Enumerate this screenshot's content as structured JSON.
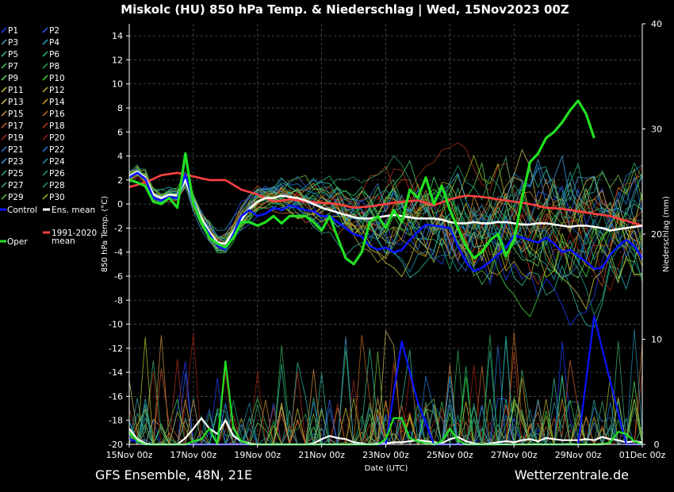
{
  "chart_data": {
    "type": "line",
    "title": "Miskolc  (HU)  850 hPa Temp. & Niederschlag | Wed, 15Nov2023 00Z",
    "ylabel_left": "850 hPa Temp. (°C)",
    "ylabel_right": "Niederschlag (mm)",
    "xlabel": "Date (UTC)",
    "x_ticks": [
      "15Nov 00z",
      "17Nov 00z",
      "19Nov 00z",
      "21Nov 00z",
      "23Nov 00z",
      "25Nov 00z",
      "27Nov 00z",
      "29Nov 00z",
      "01Dec 00z"
    ],
    "y_left_ticks": [
      "14",
      "12",
      "10",
      "8",
      "6",
      "4",
      "2",
      "0",
      "-2",
      "-4",
      "-6",
      "-8",
      "-10",
      "-12",
      "-14",
      "-16",
      "-18",
      "-20"
    ],
    "y_right_ticks": [
      "40",
      "30",
      "20",
      "10",
      "0"
    ],
    "ylim_left": [
      -20,
      15
    ],
    "ylim_right": [
      0,
      40
    ],
    "grid": true,
    "footer_left": "GFS Ensemble, 48N, 21E",
    "footer_right": "Wetterzentrale.de",
    "legend": {
      "placement": "left",
      "members": [
        "P1",
        "P2",
        "P3",
        "P4",
        "P5",
        "P6",
        "P7",
        "P8",
        "P9",
        "P10",
        "P11",
        "P12",
        "P13",
        "P14",
        "P15",
        "P16",
        "P17",
        "P18",
        "P19",
        "P20",
        "P21",
        "P22",
        "P23",
        "P24",
        "P25",
        "P26",
        "P27",
        "P28",
        "P29",
        "P30"
      ],
      "control": "Control",
      "ens_mean": "Ens. mean",
      "oper": "Oper",
      "clim_line1": "1991-2020",
      "clim_line2": "mean"
    },
    "member_colors": [
      "#1f3fff",
      "#3060ff",
      "#3aa0b0",
      "#20b0c0",
      "#30c0a0",
      "#20c070",
      "#40d060",
      "#30b050",
      "#60e060",
      "#40e040",
      "#d0d040",
      "#c0b030",
      "#d0c060",
      "#e0a020",
      "#d09040",
      "#c07020",
      "#d06030",
      "#c04020",
      "#b03020",
      "#a02010",
      "#3070d0",
      "#2080e0",
      "#40a0e0",
      "#2090b0",
      "#30b090",
      "#20a080",
      "#40b070",
      "#30a060",
      "#70c040",
      "#b0c020"
    ],
    "series": [
      {
        "name": "Control",
        "color": "#0a14ff",
        "axis": "temp",
        "x": [
          0,
          0.5,
          1,
          1.5,
          2,
          2.5,
          3,
          3.5,
          4,
          4.5,
          5,
          5.5,
          6,
          6.5,
          7,
          7.5,
          8,
          8.5,
          9,
          9.5,
          10,
          10.5,
          11,
          11.5,
          12,
          12.5,
          13,
          13.5,
          14,
          14.5,
          15,
          15.5,
          16,
          16.5,
          17,
          17.5,
          18,
          18.5,
          19,
          19.5,
          20,
          20.5,
          21,
          21.5,
          22,
          22.5,
          23,
          23.5,
          24,
          24.5,
          25,
          25.5,
          26,
          26.5,
          27,
          27.5,
          28,
          28.5,
          29,
          29.5,
          30,
          30.5,
          31,
          31.5,
          32
        ],
        "y": [
          2.2,
          2.6,
          2.1,
          0.5,
          0.3,
          0.6,
          0.5,
          2.5,
          0.2,
          -1.5,
          -2.5,
          -3.5,
          -3.8,
          -2.5,
          -1.0,
          -0.5,
          -1.0,
          -0.8,
          -0.3,
          -0.5,
          -0.1,
          -0.3,
          -0.5,
          -0.6,
          -1.0,
          -1.0,
          -1.5,
          -2.0,
          -2.5,
          -2.7,
          -3.5,
          -3.8,
          -3.6,
          -4.0,
          -3.8,
          -3.0,
          -2.3,
          -1.7,
          -1.8,
          -1.9,
          -2.0,
          -3.5,
          -4.8,
          -5.6,
          -5.3,
          -4.8,
          -4.2,
          -3.6,
          -2.6,
          -2.8,
          -3.0,
          -3.2,
          -2.8,
          -3.3,
          -4.0,
          -3.8,
          -4.3,
          -4.8,
          -5.4,
          -5.3,
          -4.2,
          -3.5,
          -3.0,
          -3.5,
          -4.5
        ]
      },
      {
        "name": "Ens. mean",
        "color": "#ffffff",
        "axis": "temp",
        "x": [
          0,
          0.5,
          1,
          1.5,
          2,
          2.5,
          3,
          3.5,
          4,
          4.5,
          5,
          5.5,
          6,
          6.5,
          7,
          7.5,
          8,
          8.5,
          9,
          9.5,
          10,
          10.5,
          11,
          11.5,
          12,
          12.5,
          13,
          13.5,
          14,
          14.5,
          15,
          15.5,
          16,
          16.5,
          17,
          17.5,
          18,
          18.5,
          19,
          19.5,
          20,
          20.5,
          21,
          21.5,
          22,
          22.5,
          23,
          23.5,
          24,
          24.5,
          25,
          25.5,
          26,
          26.5,
          27,
          27.5,
          28,
          28.5,
          29,
          29.5,
          30,
          30.5,
          31,
          31.5,
          32
        ],
        "y": [
          2.3,
          2.7,
          2.2,
          0.8,
          0.5,
          0.8,
          0.7,
          2.0,
          0.3,
          -1.2,
          -2.3,
          -3.2,
          -3.3,
          -2.3,
          -1.3,
          -0.4,
          0.2,
          0.5,
          0.5,
          0.7,
          0.6,
          0.5,
          0.3,
          0,
          -0.3,
          -0.5,
          -0.7,
          -0.9,
          -1.1,
          -1.2,
          -1.2,
          -1.1,
          -1.0,
          -0.9,
          -1.0,
          -1.1,
          -1.2,
          -1.2,
          -1.2,
          -1.3,
          -1.5,
          -1.6,
          -1.6,
          -1.5,
          -1.6,
          -1.6,
          -1.5,
          -1.5,
          -1.6,
          -1.7,
          -1.7,
          -1.6,
          -1.6,
          -1.7,
          -1.8,
          -1.9,
          -1.8,
          -1.8,
          -1.9,
          -2.0,
          -2.2,
          -2.1,
          -2.0,
          -1.9,
          -1.8
        ]
      },
      {
        "name": "Oper",
        "color": "#22e022",
        "axis": "temp",
        "x": [
          0,
          0.5,
          1,
          1.5,
          2,
          2.5,
          3,
          3.5,
          4,
          4.5,
          5,
          5.5,
          6,
          6.5,
          7,
          7.5,
          8,
          8.5,
          9,
          9.5,
          10,
          10.5,
          11,
          11.5,
          12,
          12.5,
          13,
          13.5,
          14,
          14.5,
          15,
          15.5,
          16,
          16.5,
          17,
          17.5,
          18,
          18.5,
          19,
          19.5,
          20,
          20.5,
          21,
          21.5,
          22,
          22.5,
          23,
          23.5,
          24,
          24.5,
          25,
          25.5,
          26,
          26.5,
          27,
          27.5,
          28,
          28.5,
          29,
          29.5,
          30,
          30.5,
          31,
          31.5,
          32
        ],
        "y": [
          2.0,
          1.8,
          1.5,
          0.2,
          0,
          0.5,
          -0.3,
          4.2,
          0,
          -1.5,
          -2.8,
          -3.3,
          -3.6,
          -2.8,
          -1.5,
          -1.5,
          -1.8,
          -1.5,
          -1.0,
          -1.6,
          -1.0,
          -1.0,
          -1.0,
          -1.5,
          -2.2,
          -1.0,
          -2.8,
          -4.5,
          -5.0,
          -4.0,
          -1.5,
          -1.0,
          -2.0,
          -0.5,
          -1.5,
          1.2,
          0.5,
          2.2,
          0,
          1.5,
          -0.5,
          -2.0,
          -3.5,
          -4.5,
          -4.0,
          -3.0,
          -2.5,
          -4.3,
          -3.0,
          0.5,
          3.5,
          4.2,
          5.5,
          6.0,
          6.8,
          7.8,
          8.6,
          7.5,
          5.5,
          null,
          null,
          null,
          null,
          null,
          null
        ]
      },
      {
        "name": "1991-2020\nmean",
        "color": "#ff4040",
        "axis": "temp",
        "x": [
          0,
          1,
          2,
          3,
          4,
          5,
          6,
          7,
          8,
          9,
          10,
          11,
          12,
          13,
          14,
          15,
          16,
          17,
          18,
          19,
          20,
          21,
          22,
          23,
          24,
          25,
          26,
          27,
          28,
          29,
          30,
          31,
          32
        ],
        "y": [
          1.4,
          1.8,
          2.4,
          2.6,
          2.3,
          2.0,
          2.0,
          1.2,
          0.8,
          0.2,
          0.4,
          0.2,
          0.1,
          0.0,
          -0.3,
          -0.2,
          0.0,
          0.2,
          0.3,
          -0.1,
          0.4,
          0.7,
          0.6,
          0.4,
          0.2,
          0.0,
          -0.3,
          -0.4,
          -0.6,
          -0.8,
          -1.0,
          -1.4,
          -1.8
        ]
      },
      {
        "name": "Control",
        "color": "#0a14ff",
        "axis": "precip",
        "x": [
          0,
          1,
          2,
          3,
          4,
          5,
          6,
          7,
          8,
          9,
          10,
          11,
          12,
          13,
          14,
          15,
          16,
          17,
          18,
          19,
          20,
          21,
          22,
          23,
          24,
          25,
          26,
          27,
          28,
          29,
          30,
          31,
          32
        ],
        "y": [
          0.5,
          0,
          0,
          0,
          0,
          0,
          0,
          0,
          0,
          0,
          0,
          0,
          0,
          0,
          0,
          0,
          0,
          9.8,
          4.0,
          0,
          0,
          0,
          0,
          0,
          0,
          0,
          0,
          0,
          0,
          12.2,
          6.0,
          0,
          0
        ]
      },
      {
        "name": "Oper",
        "color": "#22e022",
        "axis": "precip",
        "x": [
          0,
          0.5,
          1,
          1.5,
          2,
          2.5,
          3,
          3.5,
          4,
          4.5,
          5,
          5.5,
          6,
          6.5,
          7,
          7.5,
          8,
          8.5,
          9,
          9.5,
          10,
          10.5,
          11,
          11.5,
          12,
          12.5,
          13,
          13.5,
          14,
          14.5,
          15,
          15.5,
          16,
          16.5,
          17,
          17.5,
          18,
          18.5,
          19,
          19.5,
          20,
          20.5,
          21,
          21.5,
          22,
          22.5,
          23,
          23.5,
          24,
          24.5,
          25,
          25.5,
          26,
          26.5,
          27,
          27.5,
          28,
          28.5,
          29,
          29.5,
          30,
          30.5,
          31,
          31.5,
          32
        ],
        "y": [
          1.2,
          0.3,
          0,
          0,
          0,
          0,
          0,
          0,
          0.3,
          0.5,
          1.5,
          0,
          7.9,
          1.5,
          0.3,
          0,
          0,
          0,
          0,
          0,
          0,
          0,
          0,
          0,
          0,
          0,
          0,
          0,
          0,
          0,
          0,
          0,
          0.5,
          2.5,
          2.5,
          0.6,
          0.3,
          0.1,
          0,
          0.3,
          1.5,
          0.4,
          0,
          0,
          0,
          0,
          0,
          0,
          0,
          0,
          0,
          0,
          0,
          0,
          0,
          0,
          0,
          0,
          0,
          0,
          0.2,
          1.2,
          1.0,
          0.3,
          0
        ]
      },
      {
        "name": "Ens. mean",
        "color": "#ffffff",
        "axis": "precip",
        "x": [
          0,
          0.5,
          1,
          1.5,
          2,
          2.5,
          3,
          3.5,
          4,
          4.5,
          5,
          5.5,
          6,
          6.5,
          7,
          7.5,
          8,
          8.5,
          9,
          9.5,
          10,
          10.5,
          11,
          11.5,
          12,
          12.5,
          13,
          13.5,
          14,
          14.5,
          15,
          15.5,
          16,
          16.5,
          17,
          17.5,
          18,
          18.5,
          19,
          19.5,
          20,
          20.5,
          21,
          21.5,
          22,
          22.5,
          23,
          23.5,
          24,
          24.5,
          25,
          25.5,
          26,
          26.5,
          27,
          27.5,
          28,
          28.5,
          29,
          29.5,
          30,
          30.5,
          31,
          31.5,
          32
        ],
        "y": [
          1.5,
          0.5,
          0.1,
          0,
          0,
          0,
          0,
          0.6,
          1.5,
          2.5,
          1.5,
          1.0,
          2.3,
          0.8,
          0.3,
          0.1,
          0,
          0,
          0,
          0,
          0,
          0,
          0,
          0.1,
          0.5,
          0.8,
          0.6,
          0.5,
          0.2,
          0.1,
          0,
          0.1,
          0.1,
          0.2,
          0.2,
          0.3,
          0.4,
          0.3,
          0.2,
          0.1,
          0.5,
          0.7,
          0.3,
          0.1,
          0,
          0.1,
          0.2,
          0.3,
          0.2,
          0.4,
          0.5,
          0.3,
          0.6,
          0.5,
          0.4,
          0.4,
          0.4,
          0.5,
          0.4,
          0.7,
          0.5,
          0.4,
          0.2,
          0.3,
          0.2
        ]
      }
    ]
  }
}
